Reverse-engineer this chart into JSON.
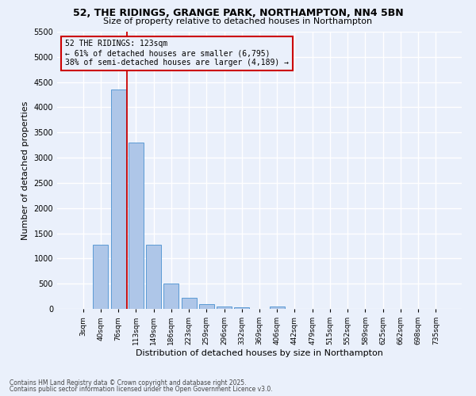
{
  "title_line1": "52, THE RIDINGS, GRANGE PARK, NORTHAMPTON, NN4 5BN",
  "title_line2": "Size of property relative to detached houses in Northampton",
  "xlabel": "Distribution of detached houses by size in Northampton",
  "ylabel": "Number of detached properties",
  "categories": [
    "3sqm",
    "40sqm",
    "76sqm",
    "113sqm",
    "149sqm",
    "186sqm",
    "223sqm",
    "259sqm",
    "296sqm",
    "332sqm",
    "369sqm",
    "406sqm",
    "442sqm",
    "479sqm",
    "515sqm",
    "552sqm",
    "589sqm",
    "625sqm",
    "662sqm",
    "698sqm",
    "735sqm"
  ],
  "bar_values": [
    0,
    1270,
    4350,
    3300,
    1280,
    500,
    215,
    90,
    55,
    35,
    0,
    55,
    0,
    0,
    0,
    0,
    0,
    0,
    0,
    0,
    0
  ],
  "bar_color": "#aec6e8",
  "bar_edge_color": "#5b9bd5",
  "background_color": "#eaf0fb",
  "grid_color": "#ffffff",
  "vline_color": "#cc0000",
  "annotation_text": "52 THE RIDINGS: 123sqm\n← 61% of detached houses are smaller (6,795)\n38% of semi-detached houses are larger (4,189) →",
  "annotation_box_color": "#cc0000",
  "ylim": [
    0,
    5500
  ],
  "yticks": [
    0,
    500,
    1000,
    1500,
    2000,
    2500,
    3000,
    3500,
    4000,
    4500,
    5000,
    5500
  ],
  "footnote1": "Contains HM Land Registry data © Crown copyright and database right 2025.",
  "footnote2": "Contains public sector information licensed under the Open Government Licence v3.0."
}
